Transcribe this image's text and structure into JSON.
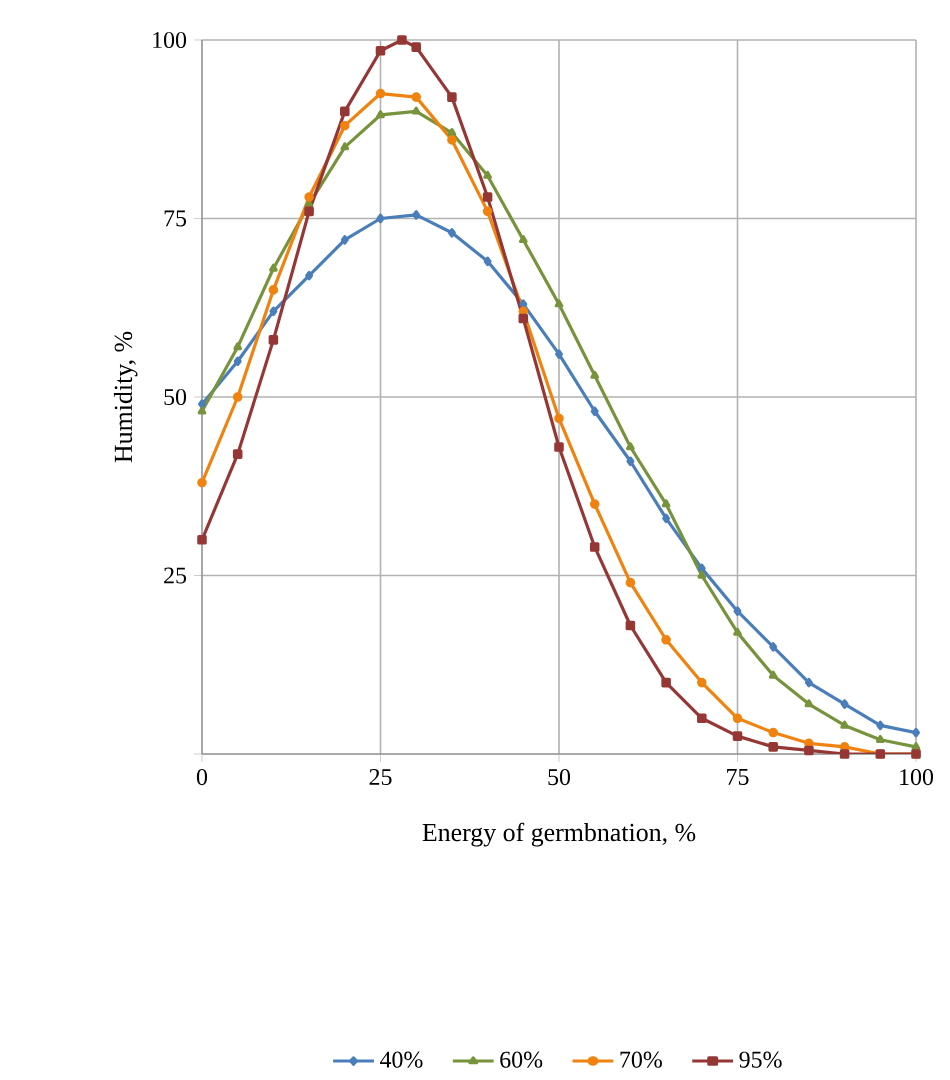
{
  "chart_data": {
    "type": "line",
    "xlabel": "Energy of germbnation, %",
    "ylabel": "Humidity, %",
    "xlim": [
      0,
      100
    ],
    "ylim": [
      0,
      100
    ],
    "xticks": [
      0,
      25,
      50,
      75,
      100
    ],
    "yticks": [
      {
        "value": 0,
        "label": null
      },
      25,
      50,
      75,
      100
    ],
    "grid": true,
    "legend": "bottom",
    "line_style": "solid",
    "series": [
      {
        "name": "40%",
        "color": "#4a7ebb",
        "marker": "diamond",
        "x": [
          0,
          5,
          10,
          15,
          20,
          25,
          30,
          35,
          40,
          45,
          50,
          55,
          60,
          65,
          70,
          75,
          80,
          85,
          90,
          95,
          100
        ],
        "values": [
          49,
          55,
          62,
          67,
          72,
          75,
          75.5,
          73,
          69,
          63,
          56,
          48,
          41,
          33,
          26,
          20,
          15,
          10,
          7,
          4,
          3
        ]
      },
      {
        "name": "60%",
        "color": "#77933c",
        "marker": "triangle",
        "x": [
          0,
          5,
          10,
          15,
          20,
          25,
          30,
          35,
          40,
          45,
          50,
          55,
          60,
          65,
          70,
          75,
          80,
          85,
          90,
          95,
          100
        ],
        "values": [
          48,
          57,
          68,
          77,
          85,
          89.5,
          90,
          87,
          81,
          72,
          63,
          53,
          43,
          35,
          25,
          17,
          11,
          7,
          4,
          2,
          1
        ]
      },
      {
        "name": "70%",
        "color": "#f0830f",
        "marker": "circle",
        "x": [
          0,
          5,
          10,
          15,
          20,
          25,
          30,
          35,
          40,
          45,
          50,
          55,
          60,
          65,
          70,
          75,
          80,
          85,
          90,
          95,
          100
        ],
        "values": [
          38,
          50,
          65,
          78,
          88,
          92.5,
          92,
          86,
          76,
          62,
          47,
          35,
          24,
          16,
          10,
          5,
          3,
          1.5,
          1,
          0,
          0
        ]
      },
      {
        "name": "95%",
        "color": "#953735",
        "marker": "square",
        "x": [
          0,
          5,
          10,
          15,
          20,
          25,
          28,
          30,
          35,
          40,
          45,
          50,
          55,
          60,
          65,
          70,
          75,
          80,
          85,
          90,
          95,
          100
        ],
        "values": [
          30,
          42,
          58,
          76,
          90,
          98.5,
          100,
          99,
          92,
          78,
          61,
          43,
          29,
          18,
          10,
          5,
          2.5,
          1,
          0.5,
          0,
          0,
          0
        ]
      }
    ]
  }
}
